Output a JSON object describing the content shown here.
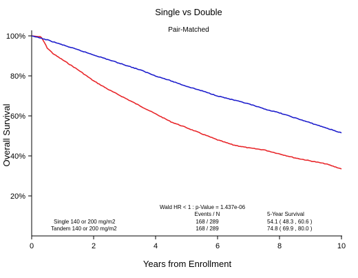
{
  "chart_data": {
    "type": "line",
    "title": "Single vs Double",
    "subtitle": "Pair-Matched",
    "xlabel": "Years from Enrollment",
    "ylabel": "Overall Survival",
    "xlim": [
      0,
      10
    ],
    "ylim": [
      0,
      100
    ],
    "x_ticks": [
      "0",
      "2",
      "4",
      "6",
      "8",
      "10"
    ],
    "y_ticks": [
      "20%",
      "40%",
      "60%",
      "80%",
      "100%"
    ],
    "grid": false,
    "series": [
      {
        "name": "Single 140 or 200 mg/m2",
        "color": "#e8262a",
        "points": [
          [
            0,
            100
          ],
          [
            0.3,
            99.5
          ],
          [
            0.4,
            97
          ],
          [
            0.5,
            94
          ],
          [
            0.7,
            91
          ],
          [
            1.0,
            88
          ],
          [
            1.5,
            83
          ],
          [
            2.0,
            77.5
          ],
          [
            2.5,
            73
          ],
          [
            3.0,
            69
          ],
          [
            3.5,
            65
          ],
          [
            4.0,
            61
          ],
          [
            4.5,
            57
          ],
          [
            5.0,
            54.1
          ],
          [
            5.5,
            51
          ],
          [
            6.0,
            48
          ],
          [
            6.5,
            45.5
          ],
          [
            7.0,
            44
          ],
          [
            7.5,
            43
          ],
          [
            8.0,
            41
          ],
          [
            8.5,
            39
          ],
          [
            9.0,
            37.5
          ],
          [
            9.5,
            36
          ],
          [
            10.0,
            33.5
          ]
        ]
      },
      {
        "name": "Tandem 140 or 200 mg/m2",
        "color": "#1d1dcc",
        "points": [
          [
            0,
            100
          ],
          [
            0.5,
            98
          ],
          [
            1.0,
            95.5
          ],
          [
            1.5,
            93
          ],
          [
            2.0,
            90.5
          ],
          [
            2.5,
            88
          ],
          [
            3.0,
            85.5
          ],
          [
            3.5,
            83
          ],
          [
            4.0,
            80
          ],
          [
            4.5,
            77.5
          ],
          [
            5.0,
            74.8
          ],
          [
            5.5,
            72.5
          ],
          [
            6.0,
            70
          ],
          [
            6.5,
            68
          ],
          [
            7.0,
            66
          ],
          [
            7.5,
            63.5
          ],
          [
            8.0,
            61.5
          ],
          [
            8.5,
            59
          ],
          [
            9.0,
            56.5
          ],
          [
            9.5,
            54
          ],
          [
            10.0,
            51.5
          ]
        ]
      }
    ],
    "annotation": {
      "wald": "Wald HR < 1 :  p-Value = 1.437e-06",
      "events_header": "Events / N",
      "survival_header": "5-Year Survival",
      "rows": [
        {
          "label": "Single 140 or 200 mg/m2",
          "events": "168 / 289",
          "survival": "54.1  ( 48.3 ,  60.6 )",
          "color": "#e8262a"
        },
        {
          "label": "Tandem 140 or 200 mg/m2",
          "events": "168 / 289",
          "survival": "74.8  ( 69.9 ,  80.0 )",
          "color": "#1d1dcc"
        }
      ]
    }
  }
}
